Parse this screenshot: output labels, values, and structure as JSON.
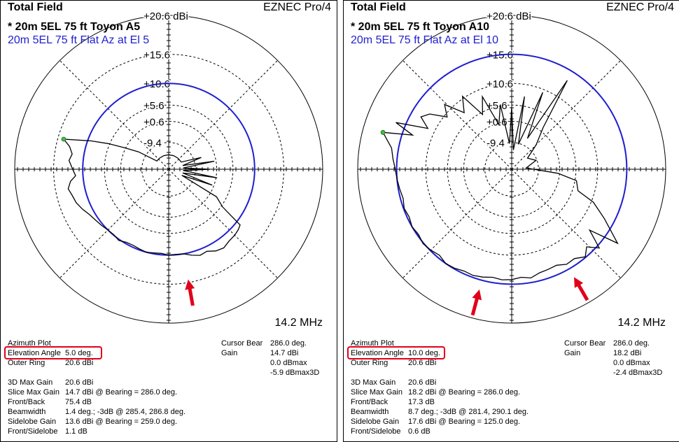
{
  "panels": [
    {
      "title": "Total Field",
      "brand": "EZNEC Pro/4",
      "model_line": "* 20m 5EL 75 ft Toyon A5",
      "reference_line": "20m 5EL 75 ft Flat Az at El 5",
      "frequency": "14.2 MHz",
      "info": {
        "plot_type": "Azimuth Plot",
        "elevation_angle_label": "Elevation Angle",
        "elevation_angle": "5.0 deg.",
        "outer_ring_label": "Outer Ring",
        "outer_ring": "20.6 dBi",
        "max_gain_3d_label": "3D Max Gain",
        "max_gain_3d": "20.6 dBi",
        "slice_max_gain_label": "Slice Max Gain",
        "slice_max_gain": "14.7 dBi @ Bearing = 286.0 deg.",
        "front_back_label": "Front/Back",
        "front_back": "75.4 dB",
        "beamwidth_label": "Beamwidth",
        "beamwidth": "1.4 deg.; -3dB @ 285.4, 286.8 deg.",
        "sidelobe_gain_label": "Sidelobe Gain",
        "sidelobe_gain": "13.6 dBi @ Bearing = 259.0 deg.",
        "front_sidelobe_label": "Front/Sidelobe",
        "front_sidelobe": "1.1 dB",
        "cursor_bear_label": "Cursor Bear",
        "cursor_bear": "286.0 deg.",
        "gain_label": "Gain",
        "gain": "14.7 dBi",
        "dbmax": "0.0 dBmax",
        "dbmax3d": "-5.9 dBmax3D"
      }
    },
    {
      "title": "Total Field",
      "brand": "EZNEC Pro/4",
      "model_line": "* 20m 5EL 75 ft Toyon A10",
      "reference_line": "20m 5EL 75 ft Flat Az at El 10",
      "frequency": "14.2 MHz",
      "info": {
        "plot_type": "Azimuth Plot",
        "elevation_angle_label": "Elevation Angle",
        "elevation_angle": "10.0 deg.",
        "outer_ring_label": "Outer Ring",
        "outer_ring": "20.6 dBi",
        "max_gain_3d_label": "3D Max Gain",
        "max_gain_3d": "20.6 dBi",
        "slice_max_gain_label": "Slice Max Gain",
        "slice_max_gain": "18.2 dBi @ Bearing = 286.0 deg.",
        "front_back_label": "Front/Back",
        "front_back": "17.3 dB",
        "beamwidth_label": "Beamwidth",
        "beamwidth": "8.7 deg.; -3dB @ 281.4, 290.1 deg.",
        "sidelobe_gain_label": "Sidelobe Gain",
        "sidelobe_gain": "17.6 dBi @ Bearing = 125.0 deg.",
        "front_sidelobe_label": "Front/Sidelobe",
        "front_sidelobe": "0.6 dB",
        "cursor_bear_label": "Cursor Bear",
        "cursor_bear": "286.0 deg.",
        "gain_label": "Gain",
        "gain": "18.2 dBi",
        "dbmax": "0.0 dBmax",
        "dbmax3d": "-2.4 dBmax3D"
      }
    }
  ],
  "chart_data": [
    {
      "type": "polar",
      "ring_labels": [
        "+20.6 dBi",
        "+15.6",
        "+10.6",
        "+5.6",
        "+0.6",
        "-9.4"
      ],
      "ring_values_dbi": [
        20.6,
        15.6,
        10.6,
        5.6,
        0.6,
        -9.4
      ],
      "outer_ring_dbi": 20.6,
      "series": [
        {
          "color": "#000000",
          "points": [
            {
              "bearing": 0,
              "gain": -20
            },
            {
              "bearing": 20,
              "gain": -20
            },
            {
              "bearing": 40,
              "gain": -20
            },
            {
              "bearing": 60,
              "gain": -20
            },
            {
              "bearing": 70,
              "gain": -5
            },
            {
              "bearing": 75,
              "gain": -20
            },
            {
              "bearing": 80,
              "gain": 0
            },
            {
              "bearing": 85,
              "gain": -20
            },
            {
              "bearing": 90,
              "gain": -2
            },
            {
              "bearing": 95,
              "gain": -20
            },
            {
              "bearing": 100,
              "gain": 1
            },
            {
              "bearing": 105,
              "gain": -20
            },
            {
              "bearing": 110,
              "gain": 0
            },
            {
              "bearing": 115,
              "gain": -20
            },
            {
              "bearing": 120,
              "gain": 3
            },
            {
              "bearing": 125,
              "gain": 6
            },
            {
              "bearing": 128,
              "gain": 11.5
            },
            {
              "bearing": 131,
              "gain": 11.8
            },
            {
              "bearing": 135,
              "gain": 12
            },
            {
              "bearing": 140,
              "gain": 12.1
            },
            {
              "bearing": 145,
              "gain": 12.5
            },
            {
              "bearing": 150,
              "gain": 12.2
            },
            {
              "bearing": 155,
              "gain": 11.5
            },
            {
              "bearing": 160,
              "gain": 11.7
            },
            {
              "bearing": 165,
              "gain": 11.2
            },
            {
              "bearing": 170,
              "gain": 10.6
            },
            {
              "bearing": 175,
              "gain": 10.5
            },
            {
              "bearing": 180,
              "gain": 10.6
            },
            {
              "bearing": 185,
              "gain": 10.3
            },
            {
              "bearing": 190,
              "gain": 10.4
            },
            {
              "bearing": 195,
              "gain": 10.6
            },
            {
              "bearing": 200,
              "gain": 10.4
            },
            {
              "bearing": 205,
              "gain": 10.2
            },
            {
              "bearing": 210,
              "gain": 10.3
            },
            {
              "bearing": 215,
              "gain": 10.8
            },
            {
              "bearing": 220,
              "gain": 10.5
            },
            {
              "bearing": 225,
              "gain": 10.6
            },
            {
              "bearing": 230,
              "gain": 10.9
            },
            {
              "bearing": 235,
              "gain": 11.2
            },
            {
              "bearing": 240,
              "gain": 11.6
            },
            {
              "bearing": 245,
              "gain": 12.3
            },
            {
              "bearing": 250,
              "gain": 12.9
            },
            {
              "bearing": 255,
              "gain": 13.2
            },
            {
              "bearing": 259,
              "gain": 13.6
            },
            {
              "bearing": 263,
              "gain": 13
            },
            {
              "bearing": 266,
              "gain": 12
            },
            {
              "bearing": 270,
              "gain": 12.5
            },
            {
              "bearing": 275,
              "gain": 13.2
            },
            {
              "bearing": 279,
              "gain": 12.8
            },
            {
              "bearing": 283,
              "gain": 13.5
            },
            {
              "bearing": 286,
              "gain": 14.7
            },
            {
              "bearing": 290,
              "gain": 10
            },
            {
              "bearing": 293,
              "gain": 6
            },
            {
              "bearing": 296,
              "gain": 1
            },
            {
              "bearing": 300,
              "gain": -5
            },
            {
              "bearing": 305,
              "gain": -20
            },
            {
              "bearing": 320,
              "gain": -20
            },
            {
              "bearing": 340,
              "gain": -20
            },
            {
              "bearing": 360,
              "gain": -20
            }
          ]
        },
        {
          "color": "#1f1fcf",
          "constant_gain": 10.6
        }
      ],
      "marker": {
        "bearing": 286,
        "gain": 14.7,
        "color": "#44bb44"
      },
      "annotation_arrows": [
        {
          "bearing": 170,
          "color": "#e0001a"
        }
      ]
    },
    {
      "type": "polar",
      "ring_labels": [
        "+20.6 dBi",
        "+15.6",
        "+10.6",
        "+5.6",
        "+0.6",
        "-9.4"
      ],
      "ring_values_dbi": [
        20.6,
        15.6,
        10.6,
        5.6,
        0.6,
        -9.4
      ],
      "outer_ring_dbi": 20.6,
      "series": [
        {
          "color": "#000000",
          "points": [
            {
              "bearing": 0,
              "gain": 5
            },
            {
              "bearing": 5,
              "gain": -15
            },
            {
              "bearing": 10,
              "gain": 8
            },
            {
              "bearing": 15,
              "gain": -10
            },
            {
              "bearing": 22,
              "gain": 10
            },
            {
              "bearing": 27,
              "gain": -5
            },
            {
              "bearing": 32,
              "gain": 14
            },
            {
              "bearing": 37,
              "gain": 2
            },
            {
              "bearing": 45,
              "gain": -5
            },
            {
              "bearing": 55,
              "gain": -15
            },
            {
              "bearing": 70,
              "gain": -10
            },
            {
              "bearing": 85,
              "gain": -20
            },
            {
              "bearing": 95,
              "gain": 0
            },
            {
              "bearing": 100,
              "gain": 6
            },
            {
              "bearing": 108,
              "gain": 7
            },
            {
              "bearing": 112,
              "gain": 11
            },
            {
              "bearing": 118,
              "gain": 14
            },
            {
              "bearing": 125,
              "gain": 17.6
            },
            {
              "bearing": 128,
              "gain": 13
            },
            {
              "bearing": 132,
              "gain": 16
            },
            {
              "bearing": 136,
              "gain": 14.5
            },
            {
              "bearing": 140,
              "gain": 15.5
            },
            {
              "bearing": 145,
              "gain": 14.7
            },
            {
              "bearing": 150,
              "gain": 14.8
            },
            {
              "bearing": 155,
              "gain": 14.2
            },
            {
              "bearing": 160,
              "gain": 14.3
            },
            {
              "bearing": 165,
              "gain": 14.4
            },
            {
              "bearing": 170,
              "gain": 14.9
            },
            {
              "bearing": 175,
              "gain": 14.6
            },
            {
              "bearing": 180,
              "gain": 14.9
            },
            {
              "bearing": 185,
              "gain": 15
            },
            {
              "bearing": 190,
              "gain": 14.8
            },
            {
              "bearing": 195,
              "gain": 15.1
            },
            {
              "bearing": 200,
              "gain": 15.3
            },
            {
              "bearing": 205,
              "gain": 15.2
            },
            {
              "bearing": 210,
              "gain": 15.5
            },
            {
              "bearing": 215,
              "gain": 15.6
            },
            {
              "bearing": 220,
              "gain": 15.2
            },
            {
              "bearing": 225,
              "gain": 15.5
            },
            {
              "bearing": 230,
              "gain": 15.7
            },
            {
              "bearing": 235,
              "gain": 15.4
            },
            {
              "bearing": 240,
              "gain": 15.6
            },
            {
              "bearing": 245,
              "gain": 15.3
            },
            {
              "bearing": 250,
              "gain": 15.5
            },
            {
              "bearing": 255,
              "gain": 15.2
            },
            {
              "bearing": 260,
              "gain": 15.4
            },
            {
              "bearing": 265,
              "gain": 15.6
            },
            {
              "bearing": 270,
              "gain": 15.8
            },
            {
              "bearing": 275,
              "gain": 16.2
            },
            {
              "bearing": 280,
              "gain": 16.6
            },
            {
              "bearing": 286,
              "gain": 18.2
            },
            {
              "bearing": 289,
              "gain": 14
            },
            {
              "bearing": 292,
              "gain": 17
            },
            {
              "bearing": 296,
              "gain": 12
            },
            {
              "bearing": 300,
              "gain": 14
            },
            {
              "bearing": 304,
              "gain": 13
            },
            {
              "bearing": 309,
              "gain": 10
            },
            {
              "bearing": 314,
              "gain": 12
            },
            {
              "bearing": 320,
              "gain": 8
            },
            {
              "bearing": 326,
              "gain": 11
            },
            {
              "bearing": 332,
              "gain": 5
            },
            {
              "bearing": 338,
              "gain": 9
            },
            {
              "bearing": 344,
              "gain": 0
            },
            {
              "bearing": 350,
              "gain": 6
            },
            {
              "bearing": 355,
              "gain": -10
            },
            {
              "bearing": 360,
              "gain": 5
            }
          ]
        },
        {
          "color": "#1f1fcf",
          "constant_gain": 15.6
        }
      ],
      "marker": {
        "bearing": 286,
        "gain": 18.2,
        "color": "#44bb44"
      },
      "annotation_arrows": [
        {
          "bearing": 195,
          "color": "#e0001a"
        },
        {
          "bearing": 150,
          "color": "#e0001a"
        }
      ]
    }
  ]
}
